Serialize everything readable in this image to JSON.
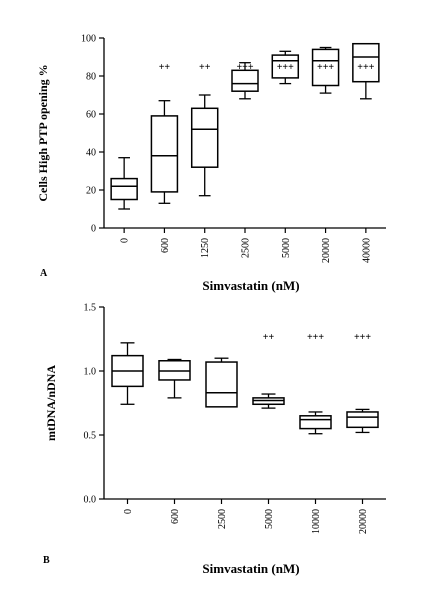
{
  "chart_data": [
    {
      "panel_label": "A",
      "type": "box",
      "xlabel": "Simvastatin (nM)",
      "ylabel": "Cells High PTP opening %",
      "ylim": [
        0,
        100
      ],
      "yticks": [
        "0",
        "20",
        "40",
        "60",
        "80",
        "100"
      ],
      "categories": [
        "0",
        "600",
        "1250",
        "2500",
        "5000",
        "20000",
        "40000"
      ],
      "boxes": [
        {
          "min": 10,
          "q1": 15,
          "median": 22,
          "q3": 26,
          "max": 37,
          "sig": ""
        },
        {
          "min": 13,
          "q1": 19,
          "median": 38,
          "q3": 59,
          "max": 67,
          "sig": "++"
        },
        {
          "min": 17,
          "q1": 32,
          "median": 52,
          "q3": 63,
          "max": 70,
          "sig": "++"
        },
        {
          "min": 68,
          "q1": 72,
          "median": 76,
          "q3": 83,
          "max": 87,
          "sig": "+++"
        },
        {
          "min": 76,
          "q1": 79,
          "median": 88,
          "q3": 91,
          "max": 93,
          "sig": "+++"
        },
        {
          "min": 71,
          "q1": 75,
          "median": 88,
          "q3": 94,
          "max": 95,
          "sig": "+++"
        },
        {
          "min": 68,
          "q1": 77,
          "median": 90,
          "q3": 97,
          "max": 97,
          "sig": "+++"
        }
      ]
    },
    {
      "panel_label": "B",
      "type": "box",
      "xlabel": "Simvastatin (nM)",
      "ylabel": "mtDNA/nDNA",
      "ylim": [
        0,
        1.5
      ],
      "yticks": [
        "0.0",
        "0.5",
        "1.0",
        "1.5"
      ],
      "categories": [
        "0",
        "600",
        "2500",
        "5000",
        "10000",
        "20000"
      ],
      "boxes": [
        {
          "min": 0.74,
          "q1": 0.88,
          "median": 1.0,
          "q3": 1.12,
          "max": 1.22,
          "sig": ""
        },
        {
          "min": 0.79,
          "q1": 0.93,
          "median": 1.0,
          "q3": 1.08,
          "max": 1.09,
          "sig": ""
        },
        {
          "min": 0.72,
          "q1": 0.72,
          "median": 0.83,
          "q3": 1.07,
          "max": 1.1,
          "sig": ""
        },
        {
          "min": 0.71,
          "q1": 0.74,
          "median": 0.77,
          "q3": 0.79,
          "max": 0.82,
          "sig": "++"
        },
        {
          "min": 0.51,
          "q1": 0.55,
          "median": 0.62,
          "q3": 0.65,
          "max": 0.68,
          "sig": "+++"
        },
        {
          "min": 0.52,
          "q1": 0.56,
          "median": 0.64,
          "q3": 0.68,
          "max": 0.7,
          "sig": "+++"
        }
      ]
    }
  ]
}
